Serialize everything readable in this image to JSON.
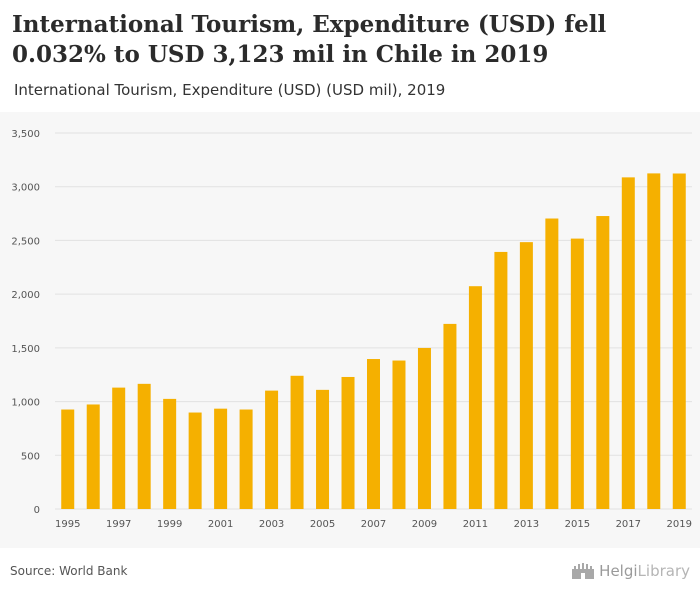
{
  "header": {
    "title": "International Tourism, Expenditure (USD) fell 0.032% to USD 3,123 mil in Chile in 2019",
    "subtitle": "International Tourism, Expenditure (USD) (USD mil), 2019"
  },
  "footer": {
    "source": "Source: World Bank",
    "brand_main": "Helgi",
    "brand_suffix": "Library",
    "brand_icon": "castle-logo-icon"
  },
  "colors": {
    "bar": "#f5b000",
    "grid": "#e2e2e2",
    "axis_text": "#555555",
    "background": "#f7f7f7"
  },
  "chart_data": {
    "type": "bar",
    "title": "International Tourism, Expenditure (USD) (USD mil), 2019",
    "xlabel": "",
    "ylabel": "",
    "ylim": [
      0,
      3500
    ],
    "yticks": [
      0,
      500,
      1000,
      1500,
      2000,
      2500,
      3000,
      3500
    ],
    "ytick_labels": [
      "0",
      "500",
      "1,000",
      "1,500",
      "2,000",
      "2,500",
      "3,000",
      "3,500"
    ],
    "categories": [
      "1995",
      "1996",
      "1997",
      "1998",
      "1999",
      "2000",
      "2001",
      "2002",
      "2003",
      "2004",
      "2005",
      "2006",
      "2007",
      "2008",
      "2009",
      "2010",
      "2011",
      "2012",
      "2013",
      "2014",
      "2015",
      "2016",
      "2017",
      "2018",
      "2019"
    ],
    "xtick_labels": [
      "1995",
      "1997",
      "1999",
      "2001",
      "2003",
      "2005",
      "2007",
      "2009",
      "2011",
      "2013",
      "2015",
      "2017",
      "2019"
    ],
    "values": [
      926,
      973,
      1130,
      1165,
      1025,
      898,
      934,
      926,
      1102,
      1240,
      1109,
      1229,
      1396,
      1382,
      1499,
      1723,
      2074,
      2393,
      2484,
      2704,
      2517,
      2727,
      3087,
      3124,
      3123
    ],
    "grid": true,
    "legend": "none"
  }
}
